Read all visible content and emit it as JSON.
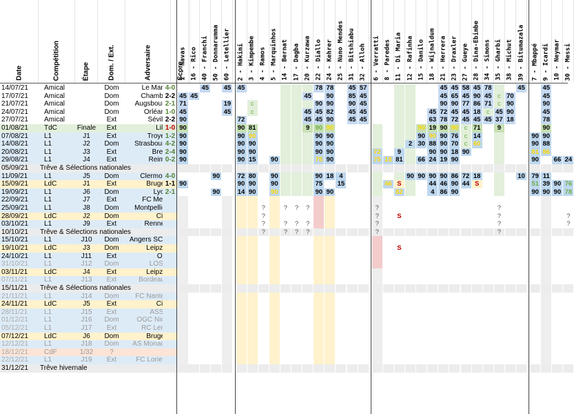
{
  "columns": {
    "date": "Date",
    "competition": "Compétition",
    "etape": "Étape",
    "domext": "Dom. / Ext.",
    "adversaire": "Adversaire",
    "score": "Score"
  },
  "players": [
    {
      "num": "1",
      "name": "Navas"
    },
    {
      "num": "16",
      "name": "Rico"
    },
    {
      "num": "40",
      "name": "Franchi"
    },
    {
      "num": "50",
      "name": "Donnarumma"
    },
    {
      "num": "60",
      "name": "Letellier"
    },
    {
      "num": "2",
      "name": "Hakimi"
    },
    {
      "num": "3",
      "name": "Kimpembe"
    },
    {
      "num": "4",
      "name": "Ramos"
    },
    {
      "num": "5",
      "name": "Marquinhos"
    },
    {
      "num": "14",
      "name": "Bernat"
    },
    {
      "num": "17",
      "name": "Dagba"
    },
    {
      "num": "20",
      "name": "Kurzawa"
    },
    {
      "num": "22",
      "name": "Diallo"
    },
    {
      "num": "24",
      "name": "Kehrer"
    },
    {
      "num": "25",
      "name": "Nuno Mendes"
    },
    {
      "num": "31",
      "name": "Bitshiabu"
    },
    {
      "num": "32",
      "name": "Alloh"
    },
    {
      "num": "6",
      "name": "Verratti"
    },
    {
      "num": "8",
      "name": "Paredes"
    },
    {
      "num": "11",
      "name": "Di Maria"
    },
    {
      "num": "12",
      "name": "Rafinha"
    },
    {
      "num": "15",
      "name": "Danilo"
    },
    {
      "num": "18",
      "name": "Wijnaldum"
    },
    {
      "num": "21",
      "name": "Herrera"
    },
    {
      "num": "23",
      "name": "Draxler"
    },
    {
      "num": "27",
      "name": "Gueye"
    },
    {
      "num": "28",
      "name": "Dina-Ebimbe"
    },
    {
      "num": "34",
      "name": "Simons"
    },
    {
      "num": "35",
      "name": "Gharbi"
    },
    {
      "num": "38",
      "name": "Michut"
    },
    {
      "num": "39",
      "name": "Bitumazala"
    },
    {
      "num": "7",
      "name": "Mbappé"
    },
    {
      "num": "9",
      "name": "Icardi"
    },
    {
      "num": "10",
      "name": "Neymar"
    },
    {
      "num": "30",
      "name": "Messi"
    }
  ],
  "rows": [
    {
      "date": "14/07/21",
      "comp": "Amical",
      "etape": "",
      "dom": "Dom",
      "adv": "Le Mans",
      "score": "4-0",
      "result": "win",
      "type": "amical",
      "cells": {
        "2": "45",
        "4": "45",
        "5": "45",
        "12": "78",
        "13": "78",
        "15": "45",
        "16": "57",
        "23": "45",
        "24": "45",
        "25": "58",
        "26": "45",
        "27": "78",
        "30": "45",
        "32": "45"
      }
    },
    {
      "date": "17/07/21",
      "comp": "Amical",
      "etape": "",
      "dom": "Dom",
      "adv": "Chambly",
      "score": "2-2",
      "result": "draw",
      "type": "amical",
      "cells": {
        "0": "45",
        "1": "45",
        "11": "45",
        "13": "90",
        "15": "85",
        "16": "45",
        "23": "45",
        "24": "65",
        "25": "45",
        "26": "90",
        "27": "45",
        "28": "c",
        "29": "70",
        "32": "45"
      }
    },
    {
      "date": "21/07/21",
      "comp": "Amical",
      "etape": "",
      "dom": "Dom",
      "adv": "Augsbourg",
      "score": "2-1",
      "result": "win",
      "type": "amical",
      "cells": {
        "0": "71",
        "4": "19",
        "6": "c",
        "12": "90",
        "13": "90",
        "15": "90",
        "16": "45",
        "23": "90",
        "24": "90",
        "25": "77",
        "26": "86",
        "27": "71",
        "28": "c",
        "29": "90",
        "32": "90"
      }
    },
    {
      "date": "24/07/21",
      "comp": "Amical",
      "etape": "",
      "dom": "Dom",
      "adv": "Orléans",
      "score": "1-0",
      "result": "win",
      "type": "amical",
      "cells": {
        "0": "45",
        "4": "45",
        "6": "c",
        "11": "45",
        "12": "45",
        "13": "82",
        "15": "45",
        "16": "45",
        "22": "45",
        "23": "72",
        "24": "45",
        "25": "45",
        "26": "18",
        "27": "c",
        "28": "45",
        "29": "90",
        "32": "45"
      }
    },
    {
      "date": "27/07/21",
      "comp": "Amical",
      "etape": "",
      "dom": "Ext",
      "adv": "Séville",
      "score": "2-2",
      "result": "draw",
      "type": "amical",
      "cells": {
        "0": "90",
        "5": "72",
        "11": "45",
        "12": "45",
        "13": "90",
        "15": "45",
        "16": "45",
        "22": "63",
        "23": "78",
        "24": "72",
        "25": "45",
        "26": "45",
        "27": "45",
        "28": "37",
        "29": "18",
        "32": "78"
      }
    },
    {
      "date": "01/08/21",
      "comp": "TdC",
      "etape": "Finale",
      "dom": "Ext",
      "adv": "Lille",
      "score": "1-0",
      "result": "loss",
      "type": "tdc",
      "cells": {
        "0": "90",
        "5": "90",
        "6": "81",
        "11": "9",
        "12": "90",
        "13": "90",
        "21": "90",
        "22": "19",
        "23": "90",
        "24": "90",
        "25": "c",
        "26": "71",
        "28": "9",
        "32": "90"
      },
      "hl": {
        "12": "g",
        "13": "y",
        "21": "y",
        "24": "y"
      }
    },
    {
      "date": "07/08/21",
      "comp": "L1",
      "etape": "J1",
      "dom": "Ext",
      "adv": "Troyes",
      "score": "1-2",
      "result": "win",
      "type": "l1",
      "cells": {
        "0": "90",
        "5": "90",
        "6": "90",
        "12": "90",
        "13": "90",
        "21": "90",
        "22": "90",
        "23": "90",
        "24": "76",
        "25": "c",
        "26": "14",
        "31": "90",
        "32": "90"
      },
      "hl": {
        "6": "y",
        "22": "y"
      }
    },
    {
      "date": "14/08/21",
      "comp": "L1",
      "etape": "J2",
      "dom": "Dom",
      "adv": "Strasbourg",
      "score": "4-2",
      "result": "win",
      "type": "l1",
      "cells": {
        "0": "90",
        "5": "90",
        "6": "90",
        "12": "90",
        "13": "90",
        "20": "2",
        "21": "30",
        "22": "88",
        "23": "90",
        "24": "70",
        "25": "c",
        "26": "60",
        "31": "90",
        "32": "88"
      },
      "hl": {
        "26": "y"
      }
    },
    {
      "date": "20/08/21",
      "comp": "L1",
      "etape": "J3",
      "dom": "Ext",
      "adv": "Brest",
      "score": "2-4",
      "result": "win",
      "type": "l1",
      "cells": {
        "0": "90",
        "5": "90",
        "6": "90",
        "12": "90",
        "13": "90",
        "17": "72",
        "19": "9",
        "22": "90",
        "23": "90",
        "24": "18",
        "25": "90",
        "31": "81",
        "32": "86"
      },
      "hl": {
        "17": "y",
        "31": "y",
        "32": "y"
      }
    },
    {
      "date": "29/08/21",
      "comp": "L1",
      "etape": "J4",
      "dom": "Ext",
      "adv": "Reims",
      "score": "0-2",
      "result": "win",
      "type": "l1",
      "cells": {
        "0": "90",
        "5": "90",
        "6": "15",
        "8": "90",
        "12": "75",
        "13": "90",
        "17": "75",
        "18": "15",
        "19": "81",
        "21": "66",
        "22": "24",
        "23": "19",
        "24": "90",
        "31": "90",
        "33": "66",
        "34": "24"
      },
      "hl": {
        "12": "y",
        "17": "y",
        "18": "y"
      }
    },
    {
      "date": "05/09/21",
      "comp": "Trêve & Sélections nationales",
      "type": "break"
    },
    {
      "date": "11/09/21",
      "comp": "L1",
      "etape": "J5",
      "dom": "Dom",
      "adv": "Clermont",
      "score": "4-0",
      "result": "win",
      "type": "l1",
      "cells": {
        "3": "90",
        "5": "72",
        "6": "80",
        "8": "90",
        "12": "90",
        "13": "18",
        "14": "4",
        "20": "90",
        "21": "90",
        "22": "90",
        "23": "90",
        "24": "86",
        "25": "72",
        "26": "18",
        "30": "10",
        "31": "79",
        "32": "11"
      }
    },
    {
      "date": "15/09/21",
      "comp": "LdC",
      "etape": "J1",
      "dom": "Ext",
      "adv": "Bruges",
      "score": "1-1",
      "result": "draw",
      "type": "ldc",
      "cells": {
        "0": "90",
        "5": "90",
        "6": "90",
        "8": "90",
        "12": "75",
        "14": "15",
        "18": "46",
        "19": "S",
        "22": "44",
        "23": "46",
        "24": "90",
        "25": "44",
        "26": "S",
        "31": "51",
        "32": "39",
        "33": "90",
        "34": "76"
      },
      "hl": {
        "18": "y",
        "31": "g",
        "34": "g"
      }
    },
    {
      "date": "19/09/21",
      "comp": "L1",
      "etape": "J6",
      "dom": "Dom",
      "adv": "Lyon",
      "score": "2-1",
      "result": "win",
      "type": "l1",
      "cells": {
        "3": "90",
        "5": "14",
        "6": "90",
        "8": "90",
        "12": "90",
        "13": "90",
        "19": "82",
        "22": "4",
        "23": "86",
        "24": "90",
        "31": "90",
        "32": "90",
        "33": "90",
        "34": "78"
      },
      "hl": {
        "8": "y",
        "19": "y",
        "34": "g"
      }
    },
    {
      "date": "22/09/21",
      "comp": "L1",
      "etape": "J7",
      "dom": "Ext",
      "adv": "FC Metz",
      "score": "",
      "type": "l1f",
      "q": {}
    },
    {
      "date": "25/09/21",
      "comp": "L1",
      "etape": "J8",
      "dom": "Dom",
      "adv": "Montpellier",
      "score": "",
      "type": "l1f",
      "q": {
        "7": "?",
        "9": "?",
        "10": "?",
        "11": "?",
        "17": "?",
        "28": "?"
      }
    },
    {
      "date": "28/09/21",
      "comp": "LdC",
      "etape": "J2",
      "dom": "Dom",
      "adv": "City",
      "score": "",
      "type": "ldcf",
      "q": {
        "7": "?",
        "17": "?",
        "19": "S",
        "28": "?",
        "34": "?"
      }
    },
    {
      "date": "03/10/21",
      "comp": "L1",
      "etape": "J9",
      "dom": "Ext",
      "adv": "Rennes",
      "score": "",
      "type": "l1f",
      "q": {
        "7": "?",
        "9": "?",
        "10": "?",
        "11": "?",
        "17": "?",
        "28": "?",
        "34": "?"
      }
    },
    {
      "date": "10/10/21",
      "comp": "Trêve & Sélections nationales",
      "type": "break",
      "q": {
        "7": "?",
        "9": "?",
        "10": "?",
        "11": "?",
        "17": "?",
        "28": "?"
      }
    },
    {
      "date": "15/10/21",
      "comp": "L1",
      "etape": "J10",
      "dom": "Dom",
      "adv": "Angers SCO",
      "score": "",
      "type": "l1f",
      "q": {}
    },
    {
      "date": "19/10/21",
      "comp": "LdC",
      "etape": "J3",
      "dom": "Dom",
      "adv": "Leipzig",
      "score": "",
      "type": "ldcf",
      "q": {
        "19": "S"
      }
    },
    {
      "date": "24/10/21",
      "comp": "L1",
      "etape": "J11",
      "dom": "Ext",
      "adv": "OM",
      "score": "",
      "type": "l1f",
      "q": {}
    },
    {
      "date": "31/10/21",
      "comp": "L1",
      "etape": "J12",
      "dom": "Dom",
      "adv": "LOSC",
      "score": "",
      "type": "l1f",
      "faded": true,
      "q": {}
    },
    {
      "date": "03/11/21",
      "comp": "LdC",
      "etape": "J4",
      "dom": "Ext",
      "adv": "Leipzig",
      "score": "",
      "type": "ldcf",
      "q": {}
    },
    {
      "date": "07/11/21",
      "comp": "L1",
      "etape": "J13",
      "dom": "Ext",
      "adv": "Bordeaux",
      "score": "",
      "type": "l1f",
      "faded": true,
      "q": {}
    },
    {
      "date": "15/11/21",
      "comp": "Trêve & Sélections nationales",
      "type": "break",
      "q": {}
    },
    {
      "date": "21/11/21",
      "comp": "L1",
      "etape": "J14",
      "dom": "Dom",
      "adv": "FC Nantes",
      "score": "",
      "type": "l1f",
      "faded": true,
      "q": {}
    },
    {
      "date": "24/11/21",
      "comp": "LdC",
      "etape": "J5",
      "dom": "Ext",
      "adv": "City",
      "score": "",
      "type": "ldcf",
      "q": {}
    },
    {
      "date": "28/11/21",
      "comp": "L1",
      "etape": "J15",
      "dom": "Ext",
      "adv": "ASSE",
      "score": "",
      "type": "l1f",
      "faded": true,
      "q": {}
    },
    {
      "date": "01/12/21",
      "comp": "L1",
      "etape": "J16",
      "dom": "Dom",
      "adv": "OGC Nice",
      "score": "",
      "type": "l1f",
      "faded": true,
      "q": {}
    },
    {
      "date": "05/12/21",
      "comp": "L1",
      "etape": "J17",
      "dom": "Ext",
      "adv": "RC Lens",
      "score": "",
      "type": "l1f",
      "faded": true,
      "q": {}
    },
    {
      "date": "07/12/21",
      "comp": "LdC",
      "etape": "J6",
      "dom": "Dom",
      "adv": "Bruges",
      "score": "",
      "type": "ldcf",
      "q": {}
    },
    {
      "date": "12/12/21",
      "comp": "L1",
      "etape": "J18",
      "dom": "Dom",
      "adv": "AS Monaco",
      "score": "",
      "type": "l1f",
      "faded": true,
      "q": {}
    },
    {
      "date": "18/12/21",
      "comp": "CdF",
      "etape": "1/32",
      "dom": "?",
      "adv": "?",
      "score": "",
      "type": "cdf",
      "faded": true,
      "q": {}
    },
    {
      "date": "22/12/21",
      "comp": "L1",
      "etape": "J19",
      "dom": "Ext",
      "adv": "FC Lorient",
      "score": "",
      "type": "l1f",
      "faded": true,
      "q": {}
    },
    {
      "date": "31/12/21",
      "comp": "Trêve hivernale",
      "type": "break",
      "q": {}
    }
  ],
  "colors": {
    "amical": "#ffffff",
    "tdc": "#e2efda",
    "l1": "#ddebf7",
    "ldc": "#fff2cc",
    "cdf": "#fce4d6",
    "break": "#ececec",
    "played": "#bdd7ee",
    "played_tdc": "#c6e0b4",
    "played_ldc": "#bdd7ee",
    "win": "#548235",
    "draw": "#000000",
    "loss": "#c00000",
    "hl_yellow": "#ffff00",
    "hl_green": "#92d050",
    "future_l1": "#ddebf7",
    "future_ldc": "#fff2cc"
  }
}
